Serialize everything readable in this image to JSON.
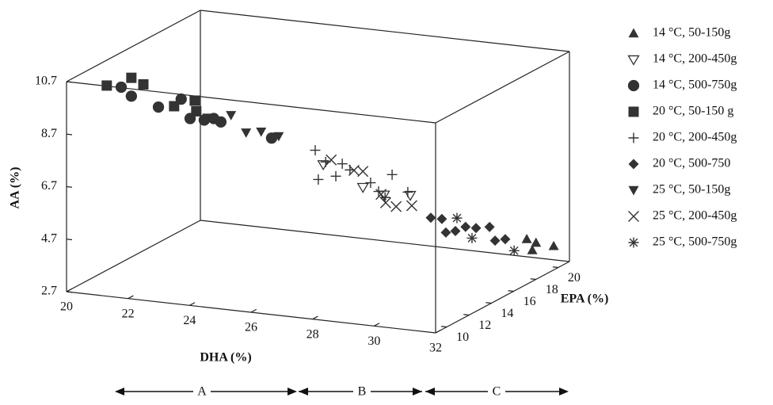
{
  "chart_data": {
    "type": "scatter3d",
    "xlabel": "DHA (%)",
    "ylabel": "EPA (%)",
    "zlabel": "AA (%)",
    "xlim": [
      20,
      32
    ],
    "ylim": [
      9,
      21
    ],
    "zlim": [
      2.7,
      10.7
    ],
    "xticks": [
      20,
      22,
      24,
      26,
      28,
      30,
      32
    ],
    "yticks": [
      10,
      12,
      14,
      16,
      18,
      20
    ],
    "zticks": [
      2.7,
      4.7,
      6.7,
      8.7,
      10.7
    ],
    "annotations": [
      "A",
      "B",
      "C"
    ],
    "series": [
      {
        "name": "14 °C, 50-150g",
        "marker": "triangle-up",
        "color": "#333333",
        "x": [
          31.7,
          31.88,
          32.0,
          31.85
        ],
        "y": [
          18,
          18,
          18,
          20
        ],
        "z": [
          4.2,
          3.8,
          4.1,
          3.5
        ]
      },
      {
        "name": "14 °C, 200-450g",
        "marker": "triangle-down-open",
        "color": "#333333",
        "x": [
          26.17,
          27.46,
          28.15,
          29.0
        ],
        "y": [
          15,
          15,
          15,
          15
        ],
        "z": [
          7.0,
          6.3,
          6.1,
          6.2
        ]
      },
      {
        "name": "14 °C, 500-750g",
        "marker": "circle",
        "color": "#333333",
        "x": [
          20.69,
          21.02,
          21.9,
          22.64,
          22.93,
          23.39,
          23.7,
          23.93,
          25.58
        ],
        "y": [
          12,
          12,
          12,
          12,
          12,
          12,
          12,
          12,
          12
        ],
        "z": [
          9.9,
          9.6,
          9.3,
          9.7,
          9.0,
          9.0,
          9.1,
          9.0,
          8.6
        ]
      },
      {
        "name": "20 °C, 50-150 g",
        "marker": "square",
        "color": "#333333",
        "x": [
          20.22,
          21.02,
          21.41,
          22.41,
          23.08,
          23.13
        ],
        "y": [
          12,
          12,
          12,
          12,
          12,
          12
        ],
        "z": [
          9.9,
          10.3,
          10.1,
          9.4,
          9.7,
          9.3
        ]
      },
      {
        "name": "20 °C, 200-450g",
        "marker": "plus",
        "color": "#333333",
        "x": [
          25.91,
          26.01,
          26.25,
          26.58,
          26.79,
          27.04,
          27.71,
          27.97,
          28.18,
          28.41,
          28.92
        ],
        "y": [
          15,
          15,
          15,
          15,
          15,
          15,
          15,
          15,
          15,
          15,
          15
        ],
        "z": [
          7.5,
          6.4,
          7.1,
          6.6,
          7.1,
          6.9,
          6.5,
          6.2,
          6.0,
          6.9,
          6.3
        ]
      },
      {
        "name": "20 °C, 500-750",
        "marker": "diamond",
        "color": "#333333",
        "x": [
          28.58,
          28.94,
          29.07,
          29.38,
          29.71,
          30.05,
          30.49,
          30.67,
          31.0
        ],
        "y": [
          18,
          18,
          18,
          18,
          18,
          18,
          18,
          18,
          18
        ],
        "z": [
          4.6,
          4.6,
          4.1,
          4.2,
          4.4,
          4.4,
          4.5,
          4.0,
          4.1
        ]
      },
      {
        "name": "25 °C, 50-150g",
        "marker": "triangle-down",
        "color": "#333333",
        "x": [
          23.49,
          24.26,
          24.75,
          25.24,
          25.81
        ],
        "y": [
          12,
          12,
          12,
          12,
          12
        ],
        "z": [
          9.1,
          9.3,
          8.7,
          8.8,
          8.7
        ]
      },
      {
        "name": "25 °C, 200-450g",
        "marker": "x",
        "color": "#333333",
        "x": [
          26.43,
          27.17,
          27.46,
          28.05,
          28.2,
          28.54,
          29.05
        ],
        "y": [
          15,
          15,
          15,
          15,
          15,
          15,
          15
        ],
        "z": [
          7.2,
          6.9,
          6.9,
          6.1,
          5.8,
          5.7,
          5.8
        ]
      },
      {
        "name": "25 °C, 500-750g",
        "marker": "asterisk",
        "color": "#333333",
        "x": [
          29.43,
          29.92,
          31.29
        ],
        "y": [
          18,
          18,
          18
        ],
        "z": [
          4.7,
          4.0,
          3.7
        ]
      }
    ]
  }
}
